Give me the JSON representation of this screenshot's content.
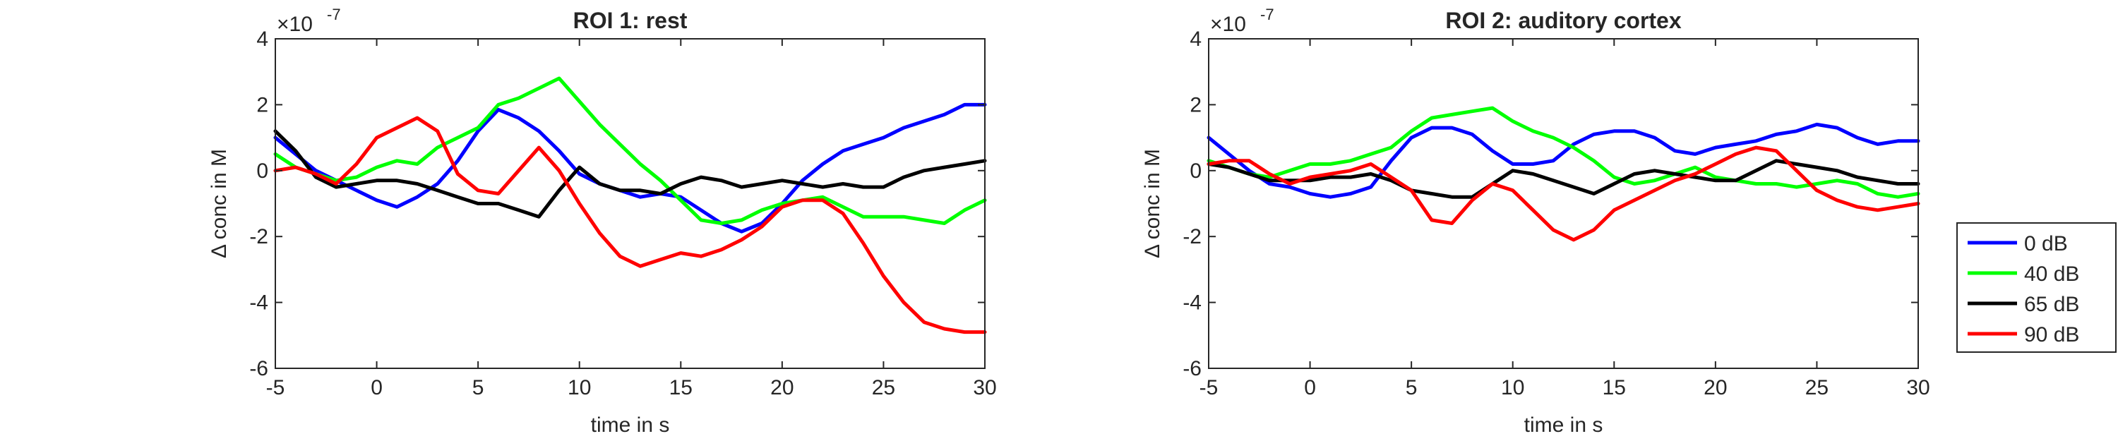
{
  "chart_data": [
    {
      "type": "line",
      "title": "ROI 1: rest",
      "xlabel": "time in s",
      "ylabel": "Δ conc in M",
      "y_multiplier": "×10",
      "y_exponent": "-7",
      "xlim": [
        -5,
        30
      ],
      "ylim": [
        -6,
        4
      ],
      "xticks": [
        "-5",
        "0",
        "5",
        "10",
        "15",
        "20",
        "25",
        "30"
      ],
      "yticks": [
        "-6",
        "-4",
        "-2",
        "0",
        "2",
        "4"
      ],
      "grid": false,
      "x": [
        -5,
        -4,
        -3,
        -2,
        -1,
        0,
        1,
        2,
        3,
        4,
        5,
        6,
        7,
        8,
        9,
        10,
        11,
        12,
        13,
        14,
        15,
        16,
        17,
        18,
        19,
        20,
        21,
        22,
        23,
        24,
        25,
        26,
        27,
        28,
        29,
        30
      ],
      "series": [
        {
          "name": "0 dB",
          "color": "#0000FF",
          "values": [
            1.0,
            0.5,
            0.0,
            -0.3,
            -0.6,
            -0.9,
            -1.1,
            -0.8,
            -0.4,
            0.3,
            1.2,
            1.85,
            1.6,
            1.2,
            0.6,
            -0.1,
            -0.4,
            -0.6,
            -0.8,
            -0.7,
            -0.8,
            -1.2,
            -1.6,
            -1.85,
            -1.6,
            -1.0,
            -0.3,
            0.2,
            0.6,
            0.8,
            1.0,
            1.3,
            1.5,
            1.7,
            2.0,
            2.0
          ]
        },
        {
          "name": "40 dB",
          "color": "#00FF00",
          "values": [
            0.5,
            0.1,
            -0.1,
            -0.3,
            -0.2,
            0.1,
            0.3,
            0.2,
            0.7,
            1.0,
            1.3,
            2.0,
            2.2,
            2.5,
            2.8,
            2.1,
            1.4,
            0.8,
            0.2,
            -0.3,
            -0.9,
            -1.5,
            -1.6,
            -1.5,
            -1.2,
            -1.0,
            -0.9,
            -0.8,
            -1.1,
            -1.4,
            -1.4,
            -1.4,
            -1.5,
            -1.6,
            -1.2,
            -0.9
          ]
        },
        {
          "name": "65 dB",
          "color": "#000000",
          "values": [
            1.2,
            0.6,
            -0.2,
            -0.5,
            -0.4,
            -0.3,
            -0.3,
            -0.4,
            -0.6,
            -0.8,
            -1.0,
            -1.0,
            -1.2,
            -1.4,
            -0.6,
            0.1,
            -0.4,
            -0.6,
            -0.6,
            -0.7,
            -0.4,
            -0.2,
            -0.3,
            -0.5,
            -0.4,
            -0.3,
            -0.4,
            -0.5,
            -0.4,
            -0.5,
            -0.5,
            -0.2,
            0.0,
            0.1,
            0.2,
            0.3
          ]
        },
        {
          "name": "90 dB",
          "color": "#FF0000",
          "values": [
            0.0,
            0.1,
            -0.1,
            -0.4,
            0.2,
            1.0,
            1.3,
            1.6,
            1.2,
            -0.1,
            -0.6,
            -0.7,
            0.0,
            0.7,
            0.0,
            -1.0,
            -1.9,
            -2.6,
            -2.9,
            -2.7,
            -2.5,
            -2.6,
            -2.4,
            -2.1,
            -1.7,
            -1.1,
            -0.9,
            -0.9,
            -1.3,
            -2.2,
            -3.2,
            -4.0,
            -4.6,
            -4.8,
            -4.9,
            -4.9
          ]
        }
      ]
    },
    {
      "type": "line",
      "title": "ROI 2: auditory cortex",
      "xlabel": "time in s",
      "ylabel": "Δ conc in M",
      "y_multiplier": "×10",
      "y_exponent": "-7",
      "xlim": [
        -5,
        30
      ],
      "ylim": [
        -6,
        4
      ],
      "xticks": [
        "-5",
        "0",
        "5",
        "10",
        "15",
        "20",
        "25",
        "30"
      ],
      "yticks": [
        "-6",
        "-4",
        "-2",
        "0",
        "2",
        "4"
      ],
      "grid": false,
      "x": [
        -5,
        -4,
        -3,
        -2,
        -1,
        0,
        1,
        2,
        3,
        4,
        5,
        6,
        7,
        8,
        9,
        10,
        11,
        12,
        13,
        14,
        15,
        16,
        17,
        18,
        19,
        20,
        21,
        22,
        23,
        24,
        25,
        26,
        27,
        28,
        29,
        30
      ],
      "series": [
        {
          "name": "0 dB",
          "color": "#0000FF",
          "values": [
            1.0,
            0.5,
            0.0,
            -0.4,
            -0.5,
            -0.7,
            -0.8,
            -0.7,
            -0.5,
            0.3,
            1.0,
            1.3,
            1.3,
            1.1,
            0.6,
            0.2,
            0.2,
            0.3,
            0.8,
            1.1,
            1.2,
            1.2,
            1.0,
            0.6,
            0.5,
            0.7,
            0.8,
            0.9,
            1.1,
            1.2,
            1.4,
            1.3,
            1.0,
            0.8,
            0.9,
            0.9
          ]
        },
        {
          "name": "40 dB",
          "color": "#00FF00",
          "values": [
            0.3,
            0.1,
            -0.1,
            -0.2,
            0.0,
            0.2,
            0.2,
            0.3,
            0.5,
            0.7,
            1.2,
            1.6,
            1.7,
            1.8,
            1.9,
            1.5,
            1.2,
            1.0,
            0.7,
            0.3,
            -0.2,
            -0.4,
            -0.3,
            -0.1,
            0.1,
            -0.2,
            -0.3,
            -0.4,
            -0.4,
            -0.5,
            -0.4,
            -0.3,
            -0.4,
            -0.7,
            -0.8,
            -0.7
          ]
        },
        {
          "name": "65 dB",
          "color": "#000000",
          "values": [
            0.2,
            0.1,
            -0.1,
            -0.3,
            -0.3,
            -0.3,
            -0.2,
            -0.2,
            -0.1,
            -0.3,
            -0.6,
            -0.7,
            -0.8,
            -0.8,
            -0.4,
            0.0,
            -0.1,
            -0.3,
            -0.5,
            -0.7,
            -0.4,
            -0.1,
            0.0,
            -0.1,
            -0.2,
            -0.3,
            -0.3,
            0.0,
            0.3,
            0.2,
            0.1,
            0.0,
            -0.2,
            -0.3,
            -0.4,
            -0.4
          ]
        },
        {
          "name": "90 dB",
          "color": "#FF0000",
          "values": [
            0.2,
            0.3,
            0.3,
            -0.1,
            -0.4,
            -0.2,
            -0.1,
            0.0,
            0.2,
            -0.2,
            -0.6,
            -1.5,
            -1.6,
            -0.9,
            -0.4,
            -0.6,
            -1.2,
            -1.8,
            -2.1,
            -1.8,
            -1.2,
            -0.9,
            -0.6,
            -0.3,
            -0.1,
            0.2,
            0.5,
            0.7,
            0.6,
            0.0,
            -0.6,
            -0.9,
            -1.1,
            -1.2,
            -1.1,
            -1.0
          ]
        }
      ]
    }
  ],
  "legend": {
    "placement": "right",
    "entries": [
      {
        "label": "0 dB",
        "color": "#0000FF"
      },
      {
        "label": "40 dB",
        "color": "#00FF00"
      },
      {
        "label": "65 dB",
        "color": "#000000"
      },
      {
        "label": "90 dB",
        "color": "#FF0000"
      }
    ]
  }
}
